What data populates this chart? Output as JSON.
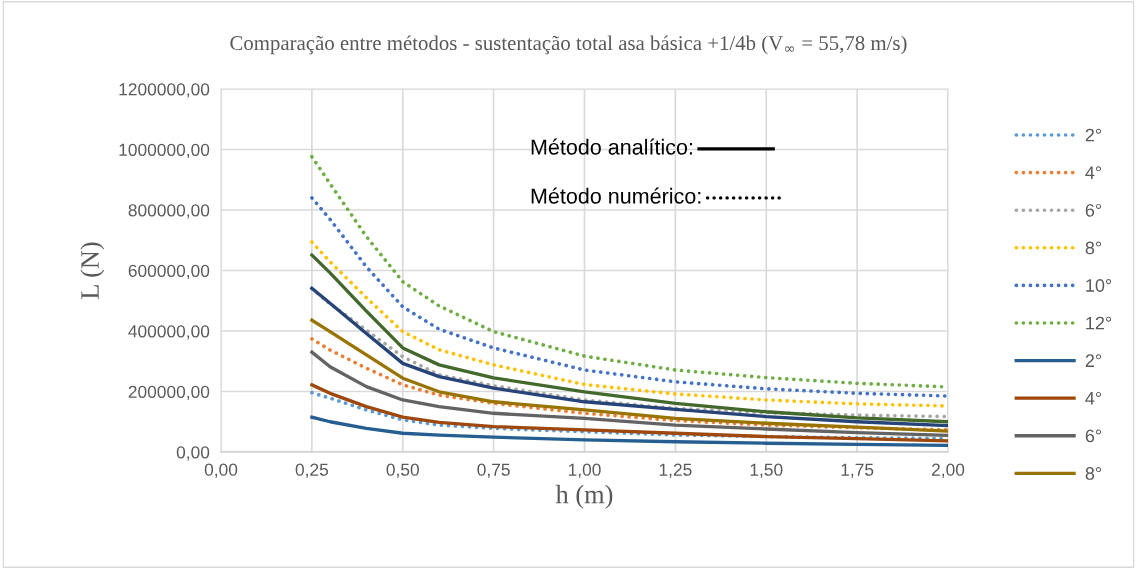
{
  "chart_data": {
    "type": "line",
    "title": "Comparação entre métodos - sustentação total asa básica +1/4b (V$_{∞}$ = 55,78 m/s)",
    "xlabel": "h (m)",
    "ylabel": "L (N)",
    "x": [
      0.25,
      0.3,
      0.4,
      0.5,
      0.6,
      0.75,
      1.0,
      1.25,
      1.5,
      1.75,
      2.0
    ],
    "series": [
      {
        "name": "2°",
        "color": "#5b9bd5",
        "line_style": "dotted",
        "values": [
          196000,
          178000,
          139000,
          106000,
          89000,
          78000,
          67000,
          56000,
          51000,
          47000,
          45000
        ]
      },
      {
        "name": "4°",
        "color": "#ed7d31",
        "line_style": "dotted",
        "values": [
          374000,
          337000,
          277000,
          222000,
          188000,
          161000,
          128000,
          104000,
          89000,
          80000,
          73000
        ]
      },
      {
        "name": "6°",
        "color": "#a5a5a5",
        "line_style": "dotted",
        "values": [
          540000,
          490000,
          403000,
          315000,
          255000,
          219000,
          172000,
          144000,
          130000,
          122000,
          117000
        ]
      },
      {
        "name": "8°",
        "color": "#ffc000",
        "line_style": "dotted",
        "values": [
          694000,
          629000,
          510000,
          398000,
          338000,
          288000,
          223000,
          192000,
          172000,
          159000,
          152000
        ]
      },
      {
        "name": "10°",
        "color": "#4472c4",
        "line_style": "dotted",
        "values": [
          840000,
          769000,
          612000,
          480000,
          406000,
          344000,
          271000,
          232000,
          209000,
          194000,
          185000
        ]
      },
      {
        "name": "12°",
        "color": "#70ad47",
        "line_style": "dotted",
        "values": [
          976000,
          887000,
          712000,
          563000,
          483000,
          398000,
          317000,
          271000,
          246000,
          227000,
          215000
        ]
      },
      {
        "name": "2°",
        "color": "#255e91",
        "line_style": "solid",
        "values": [
          115000,
          100000,
          78000,
          62000,
          56000,
          49000,
          40000,
          34000,
          29000,
          25000,
          22000
        ]
      },
      {
        "name": "4°",
        "color": "#9e480e",
        "line_style": "solid",
        "values": [
          222000,
          194000,
          150000,
          115000,
          98000,
          84000,
          73000,
          62000,
          51000,
          44000,
          37000
        ]
      },
      {
        "name": "6°",
        "color": "#636363",
        "line_style": "solid",
        "values": [
          330000,
          282000,
          216000,
          172000,
          150000,
          128000,
          111000,
          89000,
          76000,
          64000,
          55000
        ]
      },
      {
        "name": "8°",
        "color": "#997300",
        "line_style": "solid",
        "values": [
          436000,
          398000,
          321000,
          244000,
          199000,
          166000,
          139000,
          111000,
          95000,
          82000,
          69000
        ]
      },
      {
        "color": "#264478",
        "line_style": "solid",
        "values": [
          541000,
          492000,
          392000,
          293000,
          249000,
          211000,
          166000,
          141000,
          117000,
          100000,
          87000
        ]
      },
      {
        "color": "#43682b",
        "line_style": "solid",
        "values": [
          651000,
          592000,
          466000,
          344000,
          288000,
          245000,
          199000,
          161000,
          133000,
          113000,
          100000
        ]
      }
    ],
    "xlim": [
      0,
      2
    ],
    "xticks": [
      {
        "value": 0,
        "label": "0,00"
      },
      {
        "value": 0.25,
        "label": "0,25"
      },
      {
        "value": 0.5,
        "label": "0,50"
      },
      {
        "value": 0.75,
        "label": "0,75"
      },
      {
        "value": 1,
        "label": "1,00"
      },
      {
        "value": 1.25,
        "label": "1,25"
      },
      {
        "value": 1.5,
        "label": "1,50"
      },
      {
        "value": 1.75,
        "label": "1,75"
      },
      {
        "value": 2,
        "label": "2,00"
      }
    ],
    "ylim": [
      0,
      1200000
    ],
    "yticks": [
      {
        "value": 0,
        "label": "0,00"
      },
      {
        "value": 200000,
        "label": "200000,00"
      },
      {
        "value": 400000,
        "label": "400000,00"
      },
      {
        "value": 600000,
        "label": "600000,00"
      },
      {
        "value": 800000,
        "label": "800000,00"
      },
      {
        "value": 1000000,
        "label": "1000000,00"
      },
      {
        "value": 1200000,
        "label": "1200000,00"
      }
    ],
    "annotations": [
      "Método analítico:",
      "Método numérico:"
    ],
    "grid": true,
    "legend": "right",
    "marker": "none"
  }
}
